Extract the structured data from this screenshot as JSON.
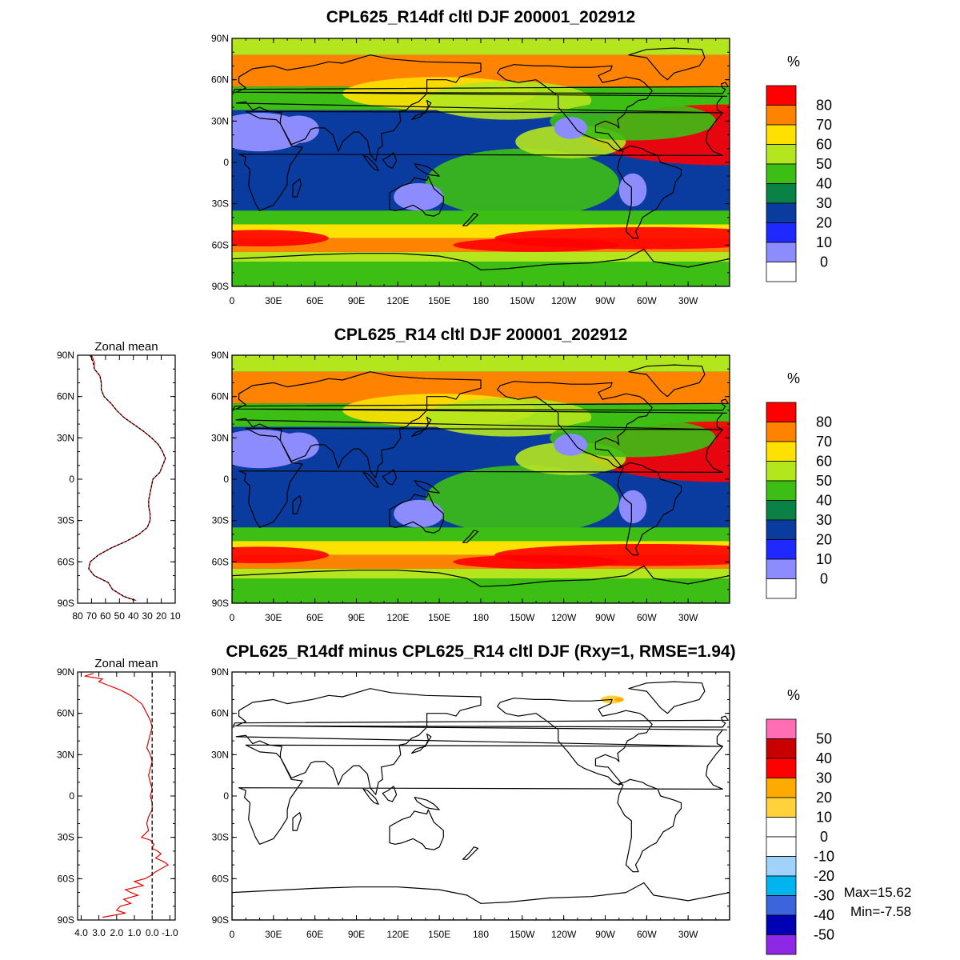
{
  "colors": {
    "field_levels": [
      "#ffffff",
      "#8c8cff",
      "#1e28ff",
      "#0a3ca0",
      "#0a8246",
      "#3cbe14",
      "#b4e61e",
      "#ffe100",
      "#ff8200",
      "#ff0000"
    ],
    "diff_levels": [
      "#8c28e6",
      "#0000b4",
      "#3c64dc",
      "#00b4f0",
      "#a0d2fa",
      "#ffffff",
      "#ffffff",
      "#ffd23c",
      "#ffaa00",
      "#ff0000",
      "#c80000",
      "#ff6eb4"
    ],
    "coastline": "#000000",
    "zonal_line_a": "#000000",
    "zonal_line_b": "#e60000"
  },
  "chart_data": [
    {
      "type": "heatmap",
      "panel": "top-map",
      "title": "CPL625_R14df cltl DJF 200001_202912",
      "x_ticks": [
        "0",
        "30E",
        "60E",
        "90E",
        "120E",
        "150E",
        "180",
        "150W",
        "120W",
        "90W",
        "60W",
        "30W"
      ],
      "y_ticks": [
        "90N",
        "60N",
        "30N",
        "0",
        "30S",
        "60S",
        "90S"
      ],
      "colorbar": {
        "unit": "%",
        "levels": [
          "80",
          "70",
          "60",
          "50",
          "40",
          "30",
          "20",
          "10",
          "0"
        ]
      },
      "bands": [
        {
          "lat": [
            90,
            78
          ],
          "value_pct": 55
        },
        {
          "lat": [
            78,
            55
          ],
          "value_pct": 75
        },
        {
          "lat": [
            55,
            38
          ],
          "value_pct": 45
        },
        {
          "lat": [
            38,
            15
          ],
          "value_pct": 25
        },
        {
          "lat": [
            15,
            -15
          ],
          "value_pct": 25
        },
        {
          "lat": [
            -15,
            -35
          ],
          "value_pct": 25
        },
        {
          "lat": [
            -35,
            -45
          ],
          "value_pct": 45
        },
        {
          "lat": [
            -45,
            -55
          ],
          "value_pct": 65
        },
        {
          "lat": [
            -55,
            -65
          ],
          "value_pct": 75
        },
        {
          "lat": [
            -65,
            -72
          ],
          "value_pct": 55
        },
        {
          "lat": [
            -72,
            -90
          ],
          "value_pct": 45
        }
      ]
    },
    {
      "type": "heatmap",
      "panel": "middle-map",
      "title": "CPL625_R14 cltl DJF 200001_202912",
      "x_ticks": [
        "0",
        "30E",
        "60E",
        "90E",
        "120E",
        "150E",
        "180",
        "150W",
        "120W",
        "90W",
        "60W",
        "30W"
      ],
      "y_ticks": [
        "90N",
        "60N",
        "30N",
        "0",
        "30S",
        "60S",
        "90S"
      ],
      "colorbar": {
        "unit": "%",
        "levels": [
          "80",
          "70",
          "60",
          "50",
          "40",
          "30",
          "20",
          "10",
          "0"
        ]
      },
      "bands": [
        {
          "lat": [
            90,
            78
          ],
          "value_pct": 55
        },
        {
          "lat": [
            78,
            55
          ],
          "value_pct": 75
        },
        {
          "lat": [
            55,
            38
          ],
          "value_pct": 45
        },
        {
          "lat": [
            38,
            15
          ],
          "value_pct": 25
        },
        {
          "lat": [
            15,
            -15
          ],
          "value_pct": 25
        },
        {
          "lat": [
            -15,
            -35
          ],
          "value_pct": 25
        },
        {
          "lat": [
            -35,
            -45
          ],
          "value_pct": 45
        },
        {
          "lat": [
            -45,
            -55
          ],
          "value_pct": 65
        },
        {
          "lat": [
            -55,
            -65
          ],
          "value_pct": 75
        },
        {
          "lat": [
            -65,
            -72
          ],
          "value_pct": 55
        },
        {
          "lat": [
            -72,
            -90
          ],
          "value_pct": 45
        }
      ]
    },
    {
      "type": "line",
      "panel": "middle-zonal-mean",
      "title": "Zonal mean",
      "x_ticks": [
        "80",
        "70",
        "60",
        "50",
        "40",
        "30",
        "20",
        "10"
      ],
      "y_ticks": [
        "90N",
        "60N",
        "30N",
        "0",
        "30S",
        "60S",
        "90S"
      ],
      "xlim": [
        80,
        10
      ],
      "ylim": [
        -90,
        90
      ],
      "lat": [
        90,
        85,
        80,
        75,
        70,
        65,
        60,
        55,
        50,
        45,
        40,
        35,
        30,
        25,
        20,
        15,
        10,
        5,
        0,
        -5,
        -10,
        -15,
        -20,
        -25,
        -30,
        -35,
        -40,
        -45,
        -50,
        -55,
        -60,
        -65,
        -70,
        -75,
        -80,
        -85,
        -88
      ],
      "series": [
        {
          "values": [
            70,
            68,
            68,
            64,
            63,
            63,
            61,
            56,
            52,
            47,
            40,
            33,
            27,
            22,
            19,
            17,
            19,
            21,
            26,
            27,
            28,
            29,
            29,
            28,
            28,
            30,
            36,
            45,
            56,
            65,
            71,
            72,
            68,
            58,
            55,
            47,
            38
          ]
        },
        {
          "values": [
            71,
            69,
            68,
            64,
            63,
            63,
            61,
            56,
            52,
            47,
            40,
            33,
            27,
            22,
            19,
            17,
            19,
            21,
            26,
            27,
            28,
            29,
            29,
            28,
            28,
            30,
            36,
            45,
            56,
            65,
            71,
            72,
            68,
            58,
            55,
            47,
            39
          ]
        }
      ]
    },
    {
      "type": "heatmap",
      "panel": "bottom-map",
      "title": "CPL625_R14df minus CPL625_R14 cltl DJF (Rxy=1, RMSE=1.94)",
      "x_ticks": [
        "0",
        "30E",
        "60E",
        "90E",
        "120E",
        "150E",
        "180",
        "150W",
        "120W",
        "90W",
        "60W",
        "30W"
      ],
      "y_ticks": [
        "90N",
        "60N",
        "30N",
        "0",
        "30S",
        "60S",
        "90S"
      ],
      "colorbar": {
        "unit": "%",
        "levels": [
          "50",
          "40",
          "30",
          "20",
          "10",
          "0",
          "-10",
          "-20",
          "-30",
          "-40",
          "-50"
        ]
      },
      "max_label": "Max=15.62",
      "min_label": "Min=-7.58"
    },
    {
      "type": "line",
      "panel": "bottom-zonal-mean",
      "title": "Zonal mean",
      "x_ticks": [
        "4.0",
        "3.0",
        "2.0",
        "1.0",
        "0.0",
        "-1.0"
      ],
      "y_ticks": [
        "90N",
        "60N",
        "30N",
        "0",
        "30S",
        "60S",
        "90S"
      ],
      "xlim": [
        4.2,
        -1.3
      ],
      "ylim": [
        -90,
        90
      ],
      "lat": [
        89,
        87,
        85,
        83,
        81,
        79,
        77,
        75,
        73,
        71,
        69,
        67,
        65,
        60,
        55,
        50,
        45,
        40,
        35,
        30,
        25,
        20,
        15,
        10,
        5,
        0,
        -5,
        -10,
        -15,
        -20,
        -25,
        -30,
        -32,
        -35,
        -38,
        -40,
        -42,
        -45,
        -48,
        -50,
        -52,
        -55,
        -58,
        -60,
        -62,
        -65,
        -68,
        -70,
        -72,
        -75,
        -78,
        -80,
        -83,
        -85,
        -88
      ],
      "series": [
        {
          "values": [
            3.3,
            3.8,
            2.8,
            3.0,
            2.6,
            2.2,
            1.8,
            1.5,
            1.2,
            1.0,
            0.8,
            0.6,
            0.5,
            0.3,
            0.1,
            0.0,
            0.1,
            0.2,
            0.3,
            0.1,
            0.0,
            0.1,
            0.2,
            0.1,
            0.0,
            0.1,
            0.0,
            0.0,
            0.2,
            0.3,
            0.2,
            0.6,
            0.1,
            -0.1,
            0.0,
            -0.3,
            -0.5,
            -0.2,
            -0.7,
            -0.9,
            -0.6,
            -0.2,
            0.1,
            0.4,
            1.0,
            0.5,
            1.5,
            1.2,
            0.8,
            1.6,
            1.2,
            1.8,
            2.0,
            1.5,
            2.8
          ]
        },
        {
          "values": [
            0,
            0,
            0,
            0,
            0,
            0,
            0,
            0,
            0,
            0,
            0,
            0,
            0,
            0,
            0,
            0,
            0,
            0,
            0,
            0,
            0,
            0,
            0,
            0,
            0,
            0,
            0,
            0,
            0,
            0,
            0,
            0,
            0,
            0,
            0,
            0,
            0,
            0,
            0,
            0,
            0,
            0,
            0,
            0,
            0,
            0,
            0,
            0,
            0,
            0,
            0,
            0,
            0,
            0,
            0
          ]
        }
      ]
    }
  ]
}
